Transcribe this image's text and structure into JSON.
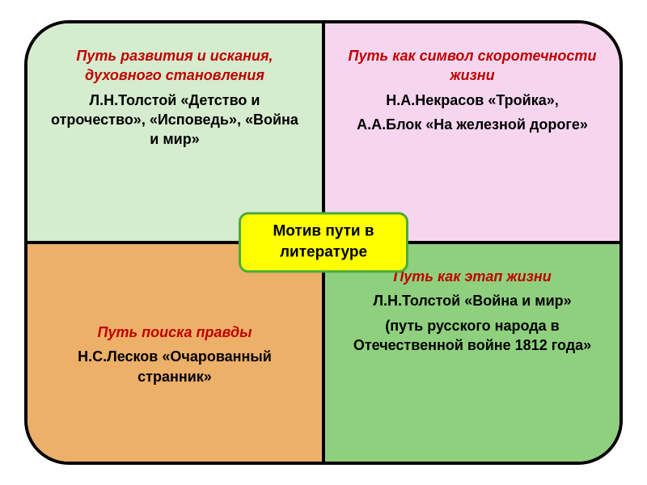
{
  "diagram": {
    "type": "infographic",
    "frame_border_color": "#000000",
    "frame_border_width": 4,
    "frame_radius": 55,
    "divider_color": "#000000",
    "center": {
      "bg_color": "#ffff00",
      "border_color": "#4aab3c",
      "text_color": "#000000",
      "line1": "Мотив пути в",
      "line2": "литературе"
    },
    "quadrants": {
      "tl": {
        "bg_color": "#d5ecce",
        "heading_color": "#c00000",
        "body_color": "#000000",
        "heading": "Путь развития и искания, духовного становления",
        "body1": "Л.Н.Толстой «Детство и отрочество», «Исповедь», «Война и мир»"
      },
      "tr": {
        "bg_color": "#f6d6ef",
        "heading_color": "#c00000",
        "body_color": "#000000",
        "heading": "Путь как символ скоротечности жизни",
        "body1": "Н.А.Некрасов «Тройка»,",
        "body2": "А.А.Блок «На железной дороге»"
      },
      "bl": {
        "bg_color": "#ecb069",
        "heading_color": "#c00000",
        "body_color": "#000000",
        "heading": "Путь поиска правды",
        "body1": "Н.С.Лесков «Очарованный странник»"
      },
      "br": {
        "bg_color": "#8fd07f",
        "heading_color": "#c00000",
        "body_color": "#000000",
        "heading": "Путь как этап жизни",
        "body1": "Л.Н.Толстой «Война и мир»",
        "body2": "(путь русского народа в Отечественной войне 1812 года»"
      }
    }
  }
}
